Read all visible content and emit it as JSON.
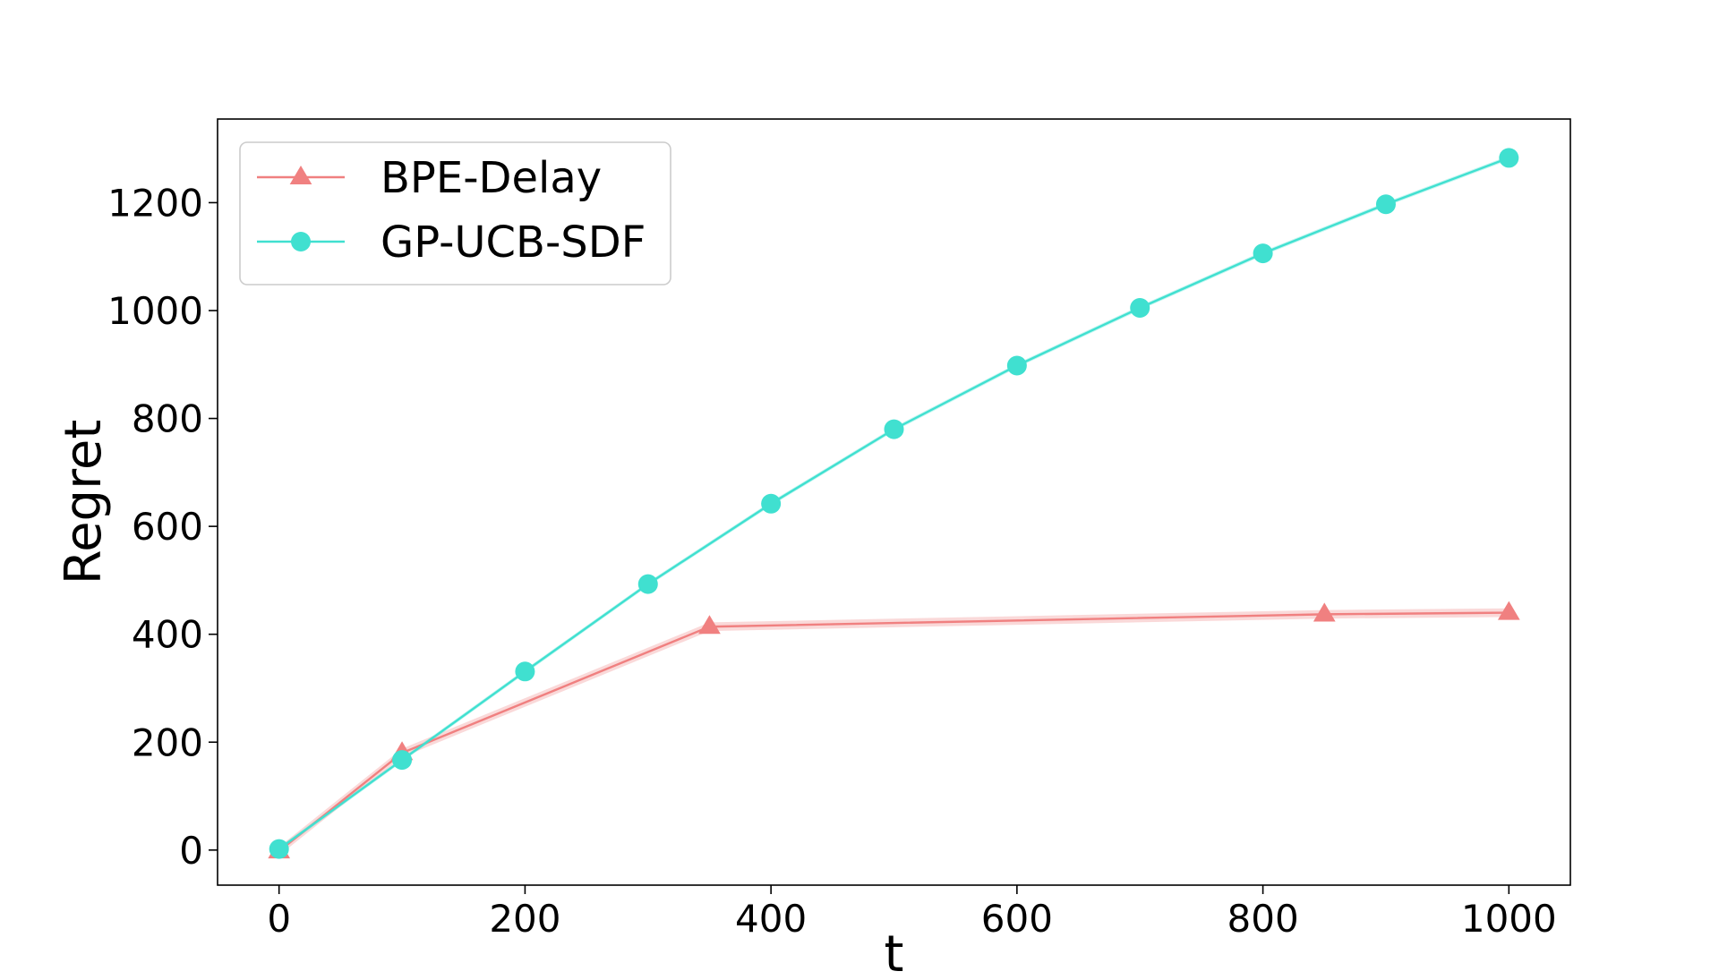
{
  "chart_data": {
    "type": "line",
    "title": "",
    "xlabel": "t",
    "ylabel": "Regret",
    "xlim": [
      -50,
      1050
    ],
    "ylim": [
      -65,
      1355
    ],
    "xticks": [
      0,
      200,
      400,
      600,
      800,
      1000
    ],
    "yticks": [
      0,
      200,
      400,
      600,
      800,
      1000,
      1200
    ],
    "grid": false,
    "legend": {
      "placement": "top-left"
    },
    "series": [
      {
        "name": "BPE-Delay",
        "color": "#F08080",
        "marker": "triangle",
        "x": [
          0,
          100,
          350,
          850,
          1000
        ],
        "y": [
          -2,
          180,
          414,
          437,
          440
        ],
        "band": 8
      },
      {
        "name": "GP-UCB-SDF",
        "color": "#40E0D0",
        "marker": "circle",
        "x": [
          0,
          100,
          200,
          300,
          400,
          500,
          600,
          700,
          800,
          900,
          1000
        ],
        "y": [
          2,
          167,
          331,
          493,
          642,
          780,
          898,
          1005,
          1106,
          1197,
          1283
        ],
        "band": 4
      }
    ]
  }
}
